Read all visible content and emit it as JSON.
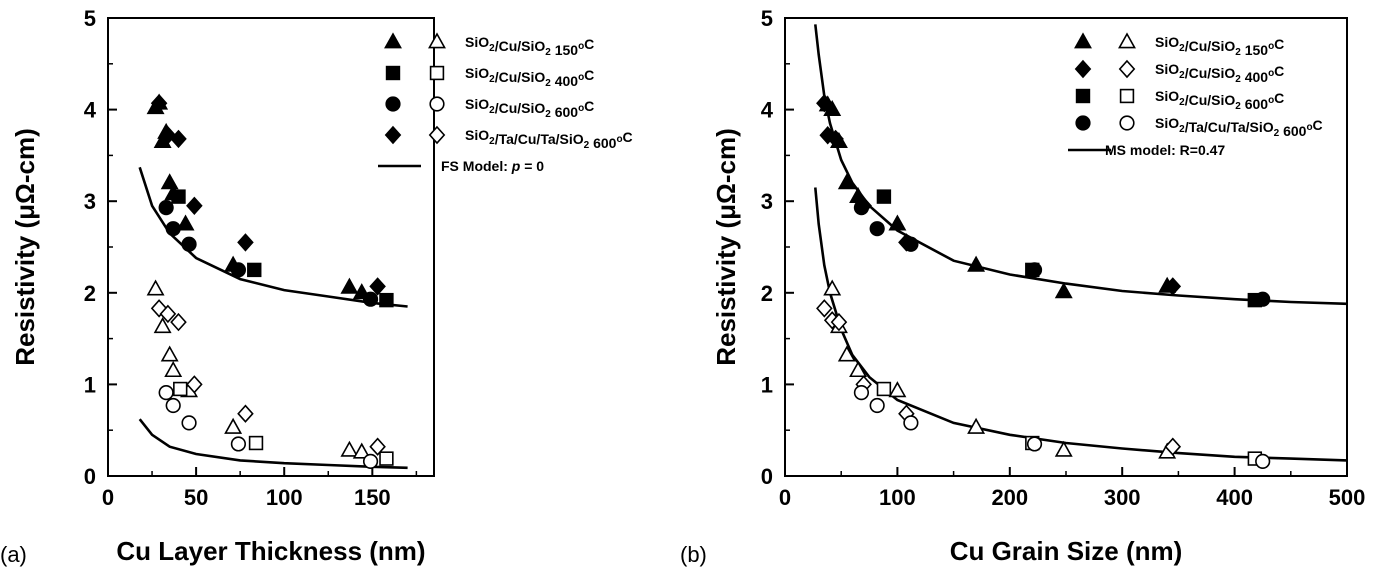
{
  "chart_data": [
    {
      "panel_label": "(a)",
      "type": "scatter",
      "xlabel": "Cu Layer Thickness (nm)",
      "ylabel": "Resistivity (μΩ-cm)",
      "xlim": [
        0,
        185
      ],
      "ylim": [
        0,
        5
      ],
      "x_ticks": [
        "0",
        "50",
        "100",
        "150"
      ],
      "y_ticks": [
        "0",
        "1",
        "2",
        "3",
        "4",
        "5"
      ],
      "legend_position": "top-right",
      "legend": [
        {
          "marker": "triangle",
          "text": "SiO2/Cu/SiO2 150°C",
          "parts": [
            "SiO",
            "2",
            "/Cu/SiO",
            "2",
            " 150",
            "o",
            "C"
          ]
        },
        {
          "marker": "square",
          "text": "SiO2/Cu/SiO2 400°C",
          "parts": [
            "SiO",
            "2",
            "/Cu/SiO",
            "2",
            " 400",
            "o",
            "C"
          ]
        },
        {
          "marker": "circle",
          "text": "SiO2/Cu/SiO2 600°C",
          "parts": [
            "SiO",
            "2",
            "/Cu/SiO",
            "2",
            " 600",
            "o",
            "C"
          ]
        },
        {
          "marker": "diamond",
          "text": "SiO2/Ta/Cu/Ta/SiO2 600°C",
          "parts": [
            "SiO",
            "2",
            "/Ta/Cu/Ta/SiO",
            "2",
            " 600",
            "o",
            "C"
          ]
        },
        {
          "marker": "line",
          "text": "FS Model: p = 0",
          "parts": [
            "FS Model: ",
            "p",
            " = 0"
          ]
        }
      ],
      "series": [
        {
          "marker": "triangle",
          "filled": true,
          "points": [
            [
              27,
              4.02
            ],
            [
              29,
              4.07
            ],
            [
              31,
              3.65
            ],
            [
              33,
              3.75
            ],
            [
              35,
              3.2
            ],
            [
              37,
              3.08
            ],
            [
              44,
              2.75
            ],
            [
              71,
              2.3
            ],
            [
              137,
              2.06
            ],
            [
              144,
              2.0
            ]
          ]
        },
        {
          "marker": "square",
          "filled": true,
          "points": [
            [
              40,
              3.05
            ],
            [
              83,
              2.25
            ],
            [
              158,
              1.92
            ]
          ]
        },
        {
          "marker": "circle",
          "filled": true,
          "points": [
            [
              33,
              2.93
            ],
            [
              37,
              2.7
            ],
            [
              46,
              2.53
            ],
            [
              74,
              2.25
            ],
            [
              149,
              1.93
            ]
          ]
        },
        {
          "marker": "diamond",
          "filled": true,
          "points": [
            [
              29,
              4.07
            ],
            [
              34,
              3.72
            ],
            [
              40,
              3.68
            ],
            [
              49,
              2.95
            ],
            [
              78,
              2.55
            ],
            [
              153,
              2.07
            ]
          ]
        },
        {
          "marker": "triangle",
          "filled": false,
          "points": [
            [
              27,
              2.04
            ],
            [
              31,
              1.63
            ],
            [
              35,
              1.32
            ],
            [
              37,
              1.15
            ],
            [
              46,
              0.93
            ],
            [
              71,
              0.53
            ],
            [
              137,
              0.28
            ],
            [
              144,
              0.26
            ]
          ]
        },
        {
          "marker": "square",
          "filled": false,
          "points": [
            [
              41,
              0.95
            ],
            [
              84,
              0.36
            ],
            [
              158,
              0.19
            ]
          ]
        },
        {
          "marker": "circle",
          "filled": false,
          "points": [
            [
              33,
              0.91
            ],
            [
              37,
              0.77
            ],
            [
              46,
              0.58
            ],
            [
              74,
              0.35
            ],
            [
              149,
              0.16
            ]
          ]
        },
        {
          "marker": "diamond",
          "filled": false,
          "points": [
            [
              29,
              1.83
            ],
            [
              34,
              1.77
            ],
            [
              40,
              1.68
            ],
            [
              49,
              1.0
            ],
            [
              78,
              0.68
            ],
            [
              153,
              0.32
            ]
          ]
        }
      ],
      "model_curves": [
        {
          "points": [
            [
              18,
              3.37
            ],
            [
              25,
              2.95
            ],
            [
              35,
              2.65
            ],
            [
              50,
              2.38
            ],
            [
              75,
              2.15
            ],
            [
              100,
              2.03
            ],
            [
              125,
              1.96
            ],
            [
              150,
              1.89
            ],
            [
              170,
              1.85
            ]
          ]
        },
        {
          "points": [
            [
              18,
              0.62
            ],
            [
              25,
              0.45
            ],
            [
              35,
              0.32
            ],
            [
              50,
              0.24
            ],
            [
              75,
              0.17
            ],
            [
              100,
              0.14
            ],
            [
              125,
              0.12
            ],
            [
              150,
              0.1
            ],
            [
              170,
              0.09
            ]
          ]
        }
      ]
    },
    {
      "panel_label": "(b)",
      "type": "scatter",
      "xlabel": "Cu Grain Size (nm)",
      "ylabel": "Resistivity (μΩ-cm)",
      "xlim": [
        0,
        500
      ],
      "ylim": [
        0,
        5
      ],
      "x_ticks": [
        "0",
        "100",
        "200",
        "300",
        "400",
        "500"
      ],
      "y_ticks": [
        "0",
        "1",
        "2",
        "3",
        "4",
        "5"
      ],
      "legend_position": "top-right",
      "legend": [
        {
          "marker": "triangle",
          "text": "SiO2/Cu/SiO2 150°C",
          "parts": [
            "SiO",
            "2",
            "/Cu/SiO",
            "2",
            " 150",
            "o",
            "C"
          ]
        },
        {
          "marker": "diamond",
          "text": "SiO2/Cu/SiO2 400°C",
          "parts": [
            "SiO",
            "2",
            "/Cu/SiO",
            "2",
            " 400",
            "o",
            "C"
          ]
        },
        {
          "marker": "square",
          "text": "SiO2/Cu/SiO2 600°C",
          "parts": [
            "SiO",
            "2",
            "/Cu/SiO",
            "2",
            " 600",
            "o",
            "C"
          ]
        },
        {
          "marker": "circle",
          "text": "SiO2/Ta/Cu/Ta/SiO2 600°C",
          "parts": [
            "SiO",
            "2",
            "/Ta/Cu/Ta/SiO",
            "2",
            " 600",
            "o",
            "C"
          ]
        },
        {
          "marker": "line",
          "text": "MS model: R=0.47",
          "parts": [
            "MS model: R=0.47"
          ]
        }
      ],
      "series": [
        {
          "marker": "triangle",
          "filled": true,
          "points": [
            [
              38,
              4.05
            ],
            [
              42,
              4.0
            ],
            [
              48,
              3.65
            ],
            [
              55,
              3.2
            ],
            [
              65,
              3.05
            ],
            [
              100,
              2.75
            ],
            [
              170,
              2.3
            ],
            [
              248,
              2.01
            ],
            [
              340,
              2.07
            ]
          ]
        },
        {
          "marker": "diamond",
          "filled": true,
          "points": [
            [
              35,
              4.07
            ],
            [
              38,
              3.72
            ],
            [
              45,
              3.68
            ],
            [
              70,
              2.95
            ],
            [
              108,
              2.55
            ],
            [
              345,
              2.07
            ]
          ]
        },
        {
          "marker": "square",
          "filled": true,
          "points": [
            [
              88,
              3.05
            ],
            [
              220,
              2.25
            ],
            [
              418,
              1.92
            ]
          ]
        },
        {
          "marker": "circle",
          "filled": true,
          "points": [
            [
              68,
              2.93
            ],
            [
              82,
              2.7
            ],
            [
              112,
              2.53
            ],
            [
              222,
              2.25
            ],
            [
              425,
              1.93
            ]
          ]
        },
        {
          "marker": "triangle",
          "filled": false,
          "points": [
            [
              42,
              2.04
            ],
            [
              48,
              1.63
            ],
            [
              55,
              1.32
            ],
            [
              65,
              1.15
            ],
            [
              100,
              0.93
            ],
            [
              170,
              0.53
            ],
            [
              248,
              0.28
            ],
            [
              340,
              0.26
            ]
          ]
        },
        {
          "marker": "diamond",
          "filled": false,
          "points": [
            [
              35,
              1.83
            ],
            [
              42,
              1.7
            ],
            [
              48,
              1.68
            ],
            [
              70,
              1.0
            ],
            [
              108,
              0.68
            ],
            [
              345,
              0.32
            ]
          ]
        },
        {
          "marker": "square",
          "filled": false,
          "points": [
            [
              88,
              0.95
            ],
            [
              220,
              0.36
            ],
            [
              418,
              0.19
            ]
          ]
        },
        {
          "marker": "circle",
          "filled": false,
          "points": [
            [
              68,
              0.91
            ],
            [
              82,
              0.77
            ],
            [
              112,
              0.58
            ],
            [
              222,
              0.35
            ],
            [
              425,
              0.16
            ]
          ]
        }
      ],
      "model_curves": [
        {
          "points": [
            [
              27,
              4.93
            ],
            [
              30,
              4.6
            ],
            [
              35,
              4.15
            ],
            [
              40,
              3.85
            ],
            [
              50,
              3.45
            ],
            [
              60,
              3.2
            ],
            [
              75,
              2.95
            ],
            [
              100,
              2.68
            ],
            [
              150,
              2.35
            ],
            [
              200,
              2.2
            ],
            [
              250,
              2.1
            ],
            [
              300,
              2.02
            ],
            [
              350,
              1.97
            ],
            [
              400,
              1.93
            ],
            [
              450,
              1.9
            ],
            [
              500,
              1.88
            ]
          ]
        },
        {
          "points": [
            [
              27,
              3.15
            ],
            [
              30,
              2.75
            ],
            [
              35,
              2.3
            ],
            [
              40,
              2.0
            ],
            [
              50,
              1.6
            ],
            [
              60,
              1.32
            ],
            [
              75,
              1.08
            ],
            [
              100,
              0.83
            ],
            [
              150,
              0.58
            ],
            [
              200,
              0.45
            ],
            [
              250,
              0.36
            ],
            [
              300,
              0.3
            ],
            [
              350,
              0.25
            ],
            [
              400,
              0.21
            ],
            [
              450,
              0.19
            ],
            [
              500,
              0.17
            ]
          ]
        }
      ]
    }
  ]
}
